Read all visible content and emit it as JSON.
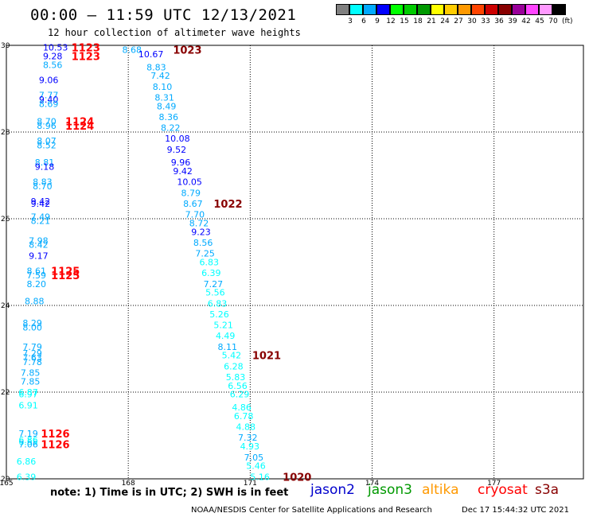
{
  "header": {
    "title": "00:00 – 11:59 UTC 12/13/2021",
    "subtitle": "12 hour collection of altimeter wave heights"
  },
  "colorbar": {
    "colors": [
      "#808080",
      "#00ffff",
      "#00aaff",
      "#0000ff",
      "#00ff00",
      "#00cc00",
      "#009900",
      "#ffff00",
      "#ffcc00",
      "#ff9900",
      "#ff4400",
      "#cc0000",
      "#880000",
      "#990099",
      "#ff44ff",
      "#ff99ff",
      "#000000"
    ],
    "labels": [
      "3",
      "6",
      "9",
      "12",
      "15",
      "18",
      "21",
      "24",
      "27",
      "30",
      "33",
      "36",
      "39",
      "42",
      "45",
      "70"
    ],
    "unit": "(ft)"
  },
  "chart_data": {
    "type": "scatter",
    "title": "00:00 – 11:59 UTC 12/13/2021",
    "subtitle": "12 hour collection of altimeter wave heights",
    "xlim": [
      165,
      179.2
    ],
    "ylim": [
      20,
      30
    ],
    "xticks": [
      "165",
      "168",
      "171",
      "174",
      "177"
    ],
    "yticks": [
      "20",
      "22",
      "24",
      "26",
      "28",
      "30"
    ],
    "grid": true,
    "points": [
      {
        "lon": 165.9,
        "lat": 29.95,
        "text": "10.53",
        "color": "#0000ff"
      },
      {
        "lon": 165.9,
        "lat": 29.75,
        "text": "9.28",
        "color": "#0000ff"
      },
      {
        "lon": 165.9,
        "lat": 29.55,
        "text": "8.56",
        "color": "#00aaff"
      },
      {
        "lon": 165.8,
        "lat": 29.2,
        "text": "9.06",
        "color": "#0000ff"
      },
      {
        "lon": 165.8,
        "lat": 28.85,
        "text": "7.77",
        "color": "#00aaff"
      },
      {
        "lon": 165.8,
        "lat": 28.75,
        "text": "9.40",
        "color": "#0000ff"
      },
      {
        "lon": 165.8,
        "lat": 28.65,
        "text": "8.69",
        "color": "#00aaff"
      },
      {
        "lon": 165.75,
        "lat": 28.25,
        "text": "8.70",
        "color": "#00aaff"
      },
      {
        "lon": 165.75,
        "lat": 28.15,
        "text": "8.96",
        "color": "#00aaff"
      },
      {
        "lon": 165.75,
        "lat": 27.8,
        "text": "8.07",
        "color": "#00aaff"
      },
      {
        "lon": 165.75,
        "lat": 27.7,
        "text": "8.52",
        "color": "#00aaff"
      },
      {
        "lon": 165.7,
        "lat": 27.3,
        "text": "8.81",
        "color": "#00aaff"
      },
      {
        "lon": 165.7,
        "lat": 27.2,
        "text": "9.18",
        "color": "#0000ff"
      },
      {
        "lon": 165.65,
        "lat": 26.85,
        "text": "8.83",
        "color": "#00aaff"
      },
      {
        "lon": 165.65,
        "lat": 26.75,
        "text": "8.70",
        "color": "#00aaff"
      },
      {
        "lon": 165.6,
        "lat": 26.4,
        "text": "9.42",
        "color": "#0000ff"
      },
      {
        "lon": 165.6,
        "lat": 26.35,
        "text": "9.42",
        "color": "#0000ff"
      },
      {
        "lon": 165.6,
        "lat": 26.05,
        "text": "7.49",
        "color": "#00aaff"
      },
      {
        "lon": 165.6,
        "lat": 25.95,
        "text": "8.21",
        "color": "#00aaff"
      },
      {
        "lon": 165.55,
        "lat": 25.5,
        "text": "7.98",
        "color": "#00aaff"
      },
      {
        "lon": 165.55,
        "lat": 25.4,
        "text": "8.42",
        "color": "#00aaff"
      },
      {
        "lon": 165.55,
        "lat": 25.15,
        "text": "9.17",
        "color": "#0000ff"
      },
      {
        "lon": 165.5,
        "lat": 24.8,
        "text": "8.61",
        "color": "#00aaff"
      },
      {
        "lon": 165.5,
        "lat": 24.7,
        "text": "7.59",
        "color": "#00aaff"
      },
      {
        "lon": 165.5,
        "lat": 24.5,
        "text": "8.20",
        "color": "#00aaff"
      },
      {
        "lon": 165.45,
        "lat": 24.1,
        "text": "8.88",
        "color": "#00aaff"
      },
      {
        "lon": 165.4,
        "lat": 23.6,
        "text": "8.29",
        "color": "#00aaff"
      },
      {
        "lon": 165.4,
        "lat": 23.5,
        "text": "8.00",
        "color": "#00aaff"
      },
      {
        "lon": 165.4,
        "lat": 23.05,
        "text": "7.79",
        "color": "#00aaff"
      },
      {
        "lon": 165.4,
        "lat": 22.9,
        "text": "7.29",
        "color": "#00aaff"
      },
      {
        "lon": 165.4,
        "lat": 22.8,
        "text": "7.63",
        "color": "#00aaff"
      },
      {
        "lon": 165.4,
        "lat": 22.7,
        "text": "7.78",
        "color": "#00aaff"
      },
      {
        "lon": 165.35,
        "lat": 22.45,
        "text": "7.85",
        "color": "#00aaff"
      },
      {
        "lon": 165.35,
        "lat": 22.25,
        "text": "7.85",
        "color": "#00aaff"
      },
      {
        "lon": 165.3,
        "lat": 22.0,
        "text": "6.87",
        "color": "#00ffff"
      },
      {
        "lon": 165.3,
        "lat": 21.95,
        "text": "6.97",
        "color": "#00ffff"
      },
      {
        "lon": 165.3,
        "lat": 21.7,
        "text": "6.91",
        "color": "#00ffff"
      },
      {
        "lon": 165.3,
        "lat": 21.05,
        "text": "7.19",
        "color": "#00aaff"
      },
      {
        "lon": 165.3,
        "lat": 20.9,
        "text": "6.86",
        "color": "#00ffff"
      },
      {
        "lon": 165.3,
        "lat": 20.85,
        "text": "6.55",
        "color": "#00ffff"
      },
      {
        "lon": 165.3,
        "lat": 20.8,
        "text": "7.06",
        "color": "#00aaff"
      },
      {
        "lon": 165.25,
        "lat": 20.4,
        "text": "6.86",
        "color": "#00ffff"
      },
      {
        "lon": 165.25,
        "lat": 20.05,
        "text": "6.39",
        "color": "#00ffff"
      },
      {
        "lon": 167.85,
        "lat": 29.9,
        "text": "8.68",
        "color": "#00aaff"
      },
      {
        "lon": 168.25,
        "lat": 29.8,
        "text": "10.67",
        "color": "#0000ff"
      },
      {
        "lon": 168.45,
        "lat": 29.5,
        "text": "8.83",
        "color": "#00aaff"
      },
      {
        "lon": 168.55,
        "lat": 29.3,
        "text": "7.42",
        "color": "#00aaff"
      },
      {
        "lon": 168.6,
        "lat": 29.05,
        "text": "8.10",
        "color": "#00aaff"
      },
      {
        "lon": 168.65,
        "lat": 28.8,
        "text": "8.31",
        "color": "#00aaff"
      },
      {
        "lon": 168.7,
        "lat": 28.6,
        "text": "8.49",
        "color": "#00aaff"
      },
      {
        "lon": 168.75,
        "lat": 28.35,
        "text": "8.36",
        "color": "#00aaff"
      },
      {
        "lon": 168.8,
        "lat": 28.1,
        "text": "8.22",
        "color": "#00aaff"
      },
      {
        "lon": 168.9,
        "lat": 27.85,
        "text": "10.08",
        "color": "#0000ff"
      },
      {
        "lon": 168.95,
        "lat": 27.6,
        "text": "9.52",
        "color": "#0000ff"
      },
      {
        "lon": 169.05,
        "lat": 27.3,
        "text": "9.96",
        "color": "#0000ff"
      },
      {
        "lon": 169.1,
        "lat": 27.1,
        "text": "9.42",
        "color": "#0000ff"
      },
      {
        "lon": 169.2,
        "lat": 26.85,
        "text": "10.05",
        "color": "#0000ff"
      },
      {
        "lon": 169.3,
        "lat": 26.6,
        "text": "8.79",
        "color": "#00aaff"
      },
      {
        "lon": 169.35,
        "lat": 26.35,
        "text": "8.67",
        "color": "#00aaff"
      },
      {
        "lon": 169.4,
        "lat": 26.1,
        "text": "7.70",
        "color": "#00aaff"
      },
      {
        "lon": 169.5,
        "lat": 25.9,
        "text": "8.72",
        "color": "#00aaff"
      },
      {
        "lon": 169.55,
        "lat": 25.7,
        "text": "9.23",
        "color": "#0000ff"
      },
      {
        "lon": 169.6,
        "lat": 25.45,
        "text": "8.56",
        "color": "#00aaff"
      },
      {
        "lon": 169.65,
        "lat": 25.2,
        "text": "7.25",
        "color": "#00aaff"
      },
      {
        "lon": 169.75,
        "lat": 25.0,
        "text": "6.83",
        "color": "#00ffff"
      },
      {
        "lon": 169.8,
        "lat": 24.75,
        "text": "6.39",
        "color": "#00ffff"
      },
      {
        "lon": 169.85,
        "lat": 24.5,
        "text": "7.27",
        "color": "#00aaff"
      },
      {
        "lon": 169.9,
        "lat": 24.3,
        "text": "5.56",
        "color": "#00ffff"
      },
      {
        "lon": 169.95,
        "lat": 24.05,
        "text": "6.83",
        "color": "#00ffff"
      },
      {
        "lon": 170.0,
        "lat": 23.8,
        "text": "5.26",
        "color": "#00ffff"
      },
      {
        "lon": 170.1,
        "lat": 23.55,
        "text": "5.21",
        "color": "#00ffff"
      },
      {
        "lon": 170.15,
        "lat": 23.3,
        "text": "4.49",
        "color": "#00ffff"
      },
      {
        "lon": 170.2,
        "lat": 23.05,
        "text": "8.11",
        "color": "#00aaff"
      },
      {
        "lon": 170.3,
        "lat": 22.85,
        "text": "5.42",
        "color": "#00ffff"
      },
      {
        "lon": 170.35,
        "lat": 22.6,
        "text": "6.28",
        "color": "#00ffff"
      },
      {
        "lon": 170.4,
        "lat": 22.35,
        "text": "5.83",
        "color": "#00ffff"
      },
      {
        "lon": 170.45,
        "lat": 22.15,
        "text": "6.56",
        "color": "#00ffff"
      },
      {
        "lon": 170.5,
        "lat": 21.95,
        "text": "6.29",
        "color": "#00ffff"
      },
      {
        "lon": 170.55,
        "lat": 21.65,
        "text": "4.86",
        "color": "#00ffff"
      },
      {
        "lon": 170.6,
        "lat": 21.45,
        "text": "6.78",
        "color": "#00ffff"
      },
      {
        "lon": 170.65,
        "lat": 21.2,
        "text": "4.88",
        "color": "#00ffff"
      },
      {
        "lon": 170.7,
        "lat": 20.95,
        "text": "7.32",
        "color": "#00aaff"
      },
      {
        "lon": 170.75,
        "lat": 20.75,
        "text": "4.93",
        "color": "#00ffff"
      },
      {
        "lon": 170.85,
        "lat": 20.5,
        "text": "7.05",
        "color": "#00aaff"
      },
      {
        "lon": 170.9,
        "lat": 20.3,
        "text": "5.46",
        "color": "#00ffff"
      },
      {
        "lon": 171.0,
        "lat": 20.05,
        "text": "5.16",
        "color": "#00ffff"
      }
    ],
    "time_labels": [
      {
        "lon": 166.6,
        "lat": 29.95,
        "text": "1123",
        "color": "#ff0000"
      },
      {
        "lon": 166.6,
        "lat": 29.75,
        "text": "1123",
        "color": "#ff0000"
      },
      {
        "lon": 166.45,
        "lat": 28.25,
        "text": "1124",
        "color": "#ff0000"
      },
      {
        "lon": 166.45,
        "lat": 28.15,
        "text": "1124",
        "color": "#ff0000"
      },
      {
        "lon": 166.1,
        "lat": 24.8,
        "text": "1125",
        "color": "#ff0000"
      },
      {
        "lon": 166.1,
        "lat": 24.7,
        "text": "1125",
        "color": "#ff0000"
      },
      {
        "lon": 165.85,
        "lat": 21.05,
        "text": "1126",
        "color": "#ff0000"
      },
      {
        "lon": 165.85,
        "lat": 20.8,
        "text": "1126",
        "color": "#ff0000"
      },
      {
        "lon": 169.1,
        "lat": 29.9,
        "text": "1023",
        "color": "#880000"
      },
      {
        "lon": 170.1,
        "lat": 26.35,
        "text": "1022",
        "color": "#880000"
      },
      {
        "lon": 171.05,
        "lat": 22.85,
        "text": "1021",
        "color": "#880000"
      },
      {
        "lon": 171.8,
        "lat": 20.05,
        "text": "1020",
        "color": "#880000"
      }
    ]
  },
  "note": "note: 1) Time is in UTC; 2) SWH is in feet",
  "satellites": [
    {
      "name": "jason2",
      "color": "#0000cc"
    },
    {
      "name": "jason3",
      "color": "#009900"
    },
    {
      "name": "altika",
      "color": "#ff9900"
    },
    {
      "name": "cryosat",
      "color": "#ff0000"
    },
    {
      "name": "s3a",
      "color": "#880000"
    }
  ],
  "footer": {
    "credit": "NOAA/NESDIS Center for Satellite Applications and Research",
    "timestamp": "Dec 17 15:44:32 UTC 2021"
  }
}
